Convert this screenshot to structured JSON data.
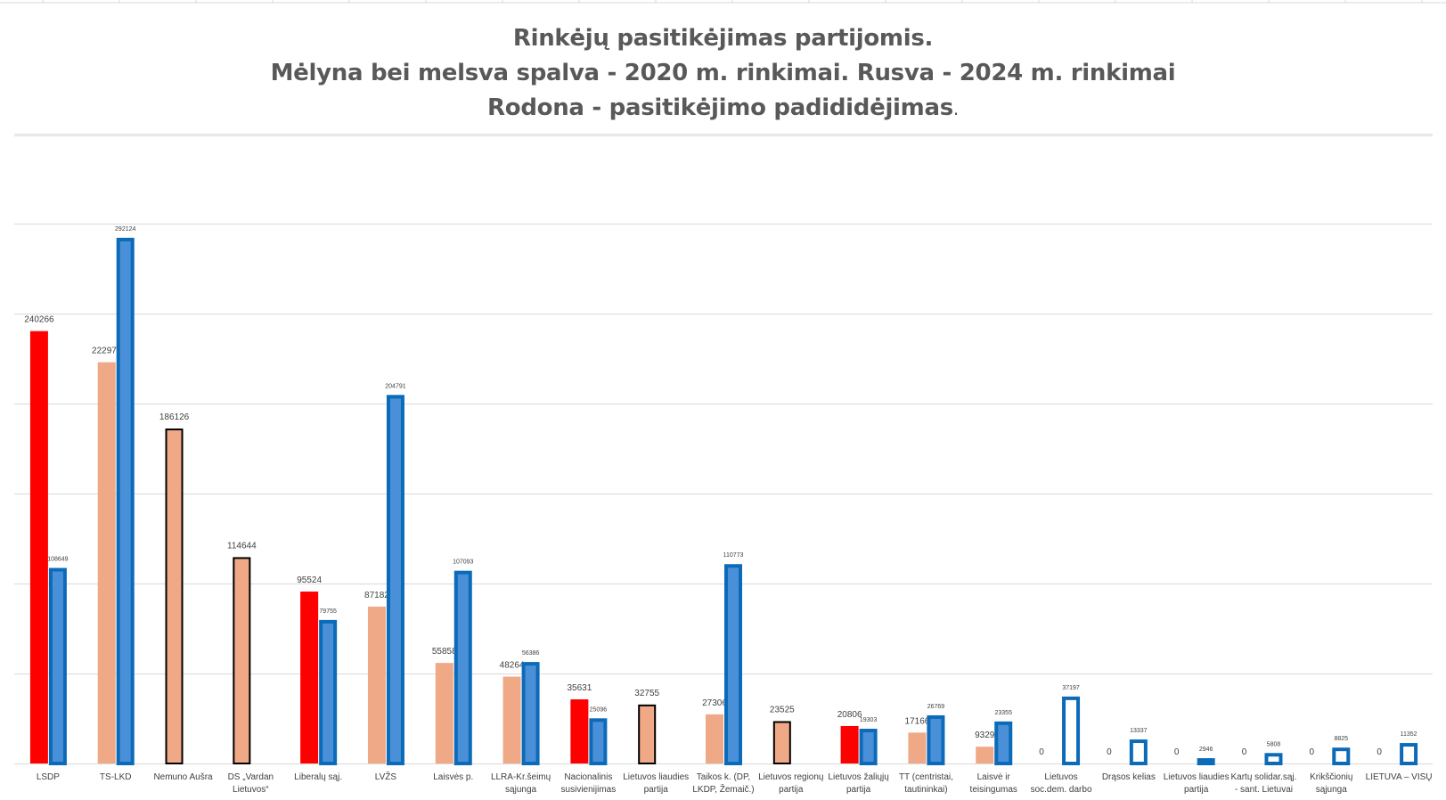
{
  "chart_data": {
    "type": "bar",
    "title_lines": [
      "Rinkėjų pasitikėjimas partijomis.",
      "Mėlyna bei melsva spalva - 2020 m. rinkimai. Rusva - 2024 m. rinkimai",
      "Rodona - pasitikėjimo padididėjimas"
    ],
    "title_suffix": ".",
    "ylim": [
      0,
      350000
    ],
    "grid": true,
    "categories": [
      "LSDP",
      "TS-LKD",
      "Nemuno Aušra",
      "DS „Vardan Lietuvos“",
      "Liberalų sąj.",
      "LVŽS",
      "Laisvės p.",
      "LLRA-Kr.šeimų sąjunga",
      "Nacionalinis susivienijimas",
      "Lietuvos liaudies partija",
      "Taikos k. (DP, LKDP, Žemaič.)",
      "Lietuvos regionų partija",
      "Lietuvos žaliųjų partija",
      "TT (centristai, tautininkai)",
      "Laisvė ir teisingumas",
      "Lietuvos soc.dem. darbo",
      "Drąsos kelias",
      "Lietuvos liaudies partija",
      "Kartų solidar.sąj. - sant. Lietuvai",
      "Krikščionių sąjunga",
      "LIETUVA – VISŲ"
    ],
    "category_lines": [
      [
        "LSDP"
      ],
      [
        "TS-LKD"
      ],
      [
        "Nemuno Aušra"
      ],
      [
        "DS „Vardan",
        "Lietuvos“"
      ],
      [
        "Liberalų sąj."
      ],
      [
        "LVŽS"
      ],
      [
        "Laisvės p."
      ],
      [
        "LLRA-Kr.šeimų",
        "sąjunga"
      ],
      [
        "Nacionalinis",
        "susivienijimas"
      ],
      [
        "Lietuvos liaudies",
        "partija"
      ],
      [
        "Taikos k. (DP,",
        "LKDP, Žemaič.)"
      ],
      [
        "Lietuvos regionų",
        "partija"
      ],
      [
        "Lietuvos žaliųjų",
        "partija"
      ],
      [
        "TT (centristai,",
        "tautininkai)"
      ],
      [
        "Laisvė ir",
        "teisingumas"
      ],
      [
        "Lietuvos",
        "soc.dem. darbo"
      ],
      [
        "Drąsos kelias"
      ],
      [
        "Lietuvos liaudies",
        "partija"
      ],
      [
        "Kartų solidar.sąj.",
        "- sant. Lietuvai"
      ],
      [
        "Krikščionių",
        "sąjunga"
      ],
      [
        "LIETUVA – VISŲ"
      ]
    ],
    "series": [
      {
        "values": [
          240266,
          222975,
          186126,
          114644,
          95524,
          87182,
          55858,
          48264,
          35631,
          32755,
          27306,
          23525,
          20806,
          17166,
          9329,
          0,
          0,
          0,
          0,
          0,
          0
        ],
        "styles": [
          "increase",
          "2024",
          "2024-outlined",
          "2024-outlined",
          "increase",
          "2024",
          "2024",
          "2024",
          "increase",
          "2024-outlined",
          "2024",
          "2024-outlined",
          "increase",
          "2024",
          "2024",
          "2024",
          "2024",
          "2024",
          "2024",
          "2024",
          "2024"
        ],
        "value_labels": [
          "240266",
          "222975",
          "186126",
          "114644",
          "95524",
          "87182",
          "55858",
          "48264",
          "35631",
          "32755",
          "27306",
          "23525",
          "20806",
          "17166",
          "9329",
          "0",
          "0",
          "0",
          "0",
          "0",
          "0"
        ]
      },
      {
        "values": [
          108649,
          292124,
          null,
          null,
          79755,
          204791,
          107093,
          56386,
          25096,
          null,
          110773,
          null,
          19303,
          26769,
          23355,
          37197,
          13337,
          2946,
          5808,
          8825,
          11352
        ],
        "styles": [
          "2020",
          "2020",
          null,
          null,
          "2020",
          "2020",
          "2020",
          "2020",
          "2020",
          null,
          "2020",
          null,
          "2020",
          "2020",
          "2020",
          "2020-hollow",
          "2020-hollow",
          "2020-hollow",
          "2020-hollow",
          "2020-hollow",
          "2020-hollow"
        ],
        "value_labels": [
          "108649",
          "292124",
          null,
          null,
          "79755",
          "204791",
          "107093",
          "56386",
          "25096",
          null,
          "110773",
          null,
          "19303",
          "26769",
          "23355",
          "37197",
          "13337",
          "2946",
          "5808",
          "8825",
          "11352"
        ]
      }
    ],
    "colors": {
      "increase": "#ff0000",
      "2024": "#f0a986",
      "2020_fill": "#4a90d9",
      "2020_border": "#0b6bb8",
      "outline": "#000000",
      "gridline": "#d9d9d9",
      "title": "#595959",
      "label": "#404040"
    }
  }
}
